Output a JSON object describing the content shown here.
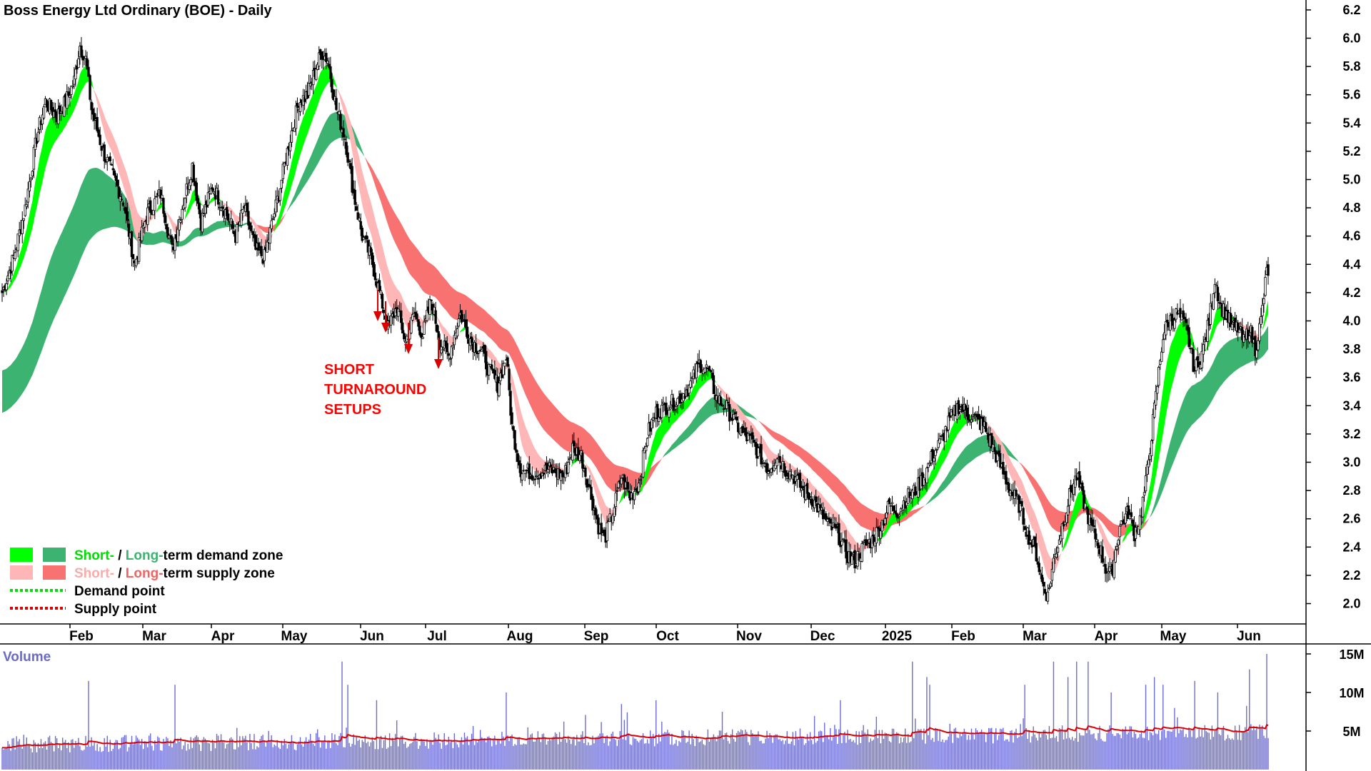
{
  "chart_data": {
    "type": "candlestick",
    "title": "Boss Energy Ltd Ordinary (BOE) - Daily",
    "price_axis": {
      "ticks": [
        "2.0",
        "2.2",
        "2.4",
        "2.6",
        "2.8",
        "3.0",
        "3.2",
        "3.4",
        "3.6",
        "3.8",
        "4.0",
        "4.2",
        "4.4",
        "4.6",
        "4.8",
        "5.0",
        "5.2",
        "5.4",
        "5.6",
        "5.8",
        "6.0",
        "6.2"
      ],
      "ylim": [
        1.87,
        6.28
      ]
    },
    "x_axis": {
      "labels": [
        "Feb",
        "Mar",
        "Apr",
        "May",
        "Jun",
        "Jul",
        "Aug",
        "Sep",
        "Oct",
        "Nov",
        "Dec",
        "2025",
        "Feb",
        "Mar",
        "Apr",
        "May",
        "Jun"
      ]
    },
    "price_path": [
      [
        0,
        4.2
      ],
      [
        8,
        4.45
      ],
      [
        16,
        4.8
      ],
      [
        24,
        5.3
      ],
      [
        30,
        5.55
      ],
      [
        38,
        5.45
      ],
      [
        44,
        5.55
      ],
      [
        50,
        5.7
      ],
      [
        54,
        5.95
      ],
      [
        58,
        5.85
      ],
      [
        62,
        5.5
      ],
      [
        70,
        5.2
      ],
      [
        78,
        5.0
      ],
      [
        84,
        4.85
      ],
      [
        92,
        4.4
      ],
      [
        100,
        4.75
      ],
      [
        110,
        4.9
      ],
      [
        118,
        4.5
      ],
      [
        126,
        4.85
      ],
      [
        132,
        5.1
      ],
      [
        138,
        4.7
      ],
      [
        146,
        4.95
      ],
      [
        154,
        4.8
      ],
      [
        162,
        4.6
      ],
      [
        168,
        4.8
      ],
      [
        176,
        4.5
      ],
      [
        182,
        4.45
      ],
      [
        192,
        4.9
      ],
      [
        200,
        5.3
      ],
      [
        206,
        5.55
      ],
      [
        212,
        5.6
      ],
      [
        218,
        5.8
      ],
      [
        222,
        5.9
      ],
      [
        226,
        5.85
      ],
      [
        232,
        5.5
      ],
      [
        238,
        5.3
      ],
      [
        244,
        4.9
      ],
      [
        250,
        4.6
      ],
      [
        256,
        4.45
      ],
      [
        262,
        4.2
      ],
      [
        268,
        3.95
      ],
      [
        274,
        4.1
      ],
      [
        280,
        3.85
      ],
      [
        286,
        4.05
      ],
      [
        292,
        3.9
      ],
      [
        298,
        4.15
      ],
      [
        304,
        3.85
      ],
      [
        310,
        3.75
      ],
      [
        318,
        4.05
      ],
      [
        326,
        3.85
      ],
      [
        332,
        3.8
      ],
      [
        338,
        3.65
      ],
      [
        344,
        3.55
      ],
      [
        350,
        3.75
      ],
      [
        354,
        3.25
      ],
      [
        360,
        2.95
      ],
      [
        370,
        2.92
      ],
      [
        380,
        2.95
      ],
      [
        390,
        2.9
      ],
      [
        396,
        3.1
      ],
      [
        402,
        3.05
      ],
      [
        408,
        2.8
      ],
      [
        414,
        2.55
      ],
      [
        418,
        2.45
      ],
      [
        424,
        2.65
      ],
      [
        430,
        2.9
      ],
      [
        436,
        2.75
      ],
      [
        442,
        2.85
      ],
      [
        448,
        3.2
      ],
      [
        454,
        3.35
      ],
      [
        462,
        3.4
      ],
      [
        470,
        3.45
      ],
      [
        478,
        3.55
      ],
      [
        484,
        3.7
      ],
      [
        490,
        3.65
      ],
      [
        496,
        3.45
      ],
      [
        502,
        3.4
      ],
      [
        508,
        3.3
      ],
      [
        514,
        3.2
      ],
      [
        520,
        3.15
      ],
      [
        526,
        3.05
      ],
      [
        532,
        2.95
      ],
      [
        538,
        3.05
      ],
      [
        544,
        2.95
      ],
      [
        550,
        2.9
      ],
      [
        556,
        2.8
      ],
      [
        562,
        2.75
      ],
      [
        568,
        2.65
      ],
      [
        574,
        2.55
      ],
      [
        580,
        2.5
      ],
      [
        586,
        2.35
      ],
      [
        592,
        2.3
      ],
      [
        598,
        2.4
      ],
      [
        604,
        2.45
      ],
      [
        610,
        2.55
      ],
      [
        616,
        2.7
      ],
      [
        622,
        2.65
      ],
      [
        628,
        2.75
      ],
      [
        634,
        2.8
      ],
      [
        640,
        2.9
      ],
      [
        646,
        3.05
      ],
      [
        652,
        3.15
      ],
      [
        658,
        3.3
      ],
      [
        664,
        3.4
      ],
      [
        670,
        3.35
      ],
      [
        676,
        3.3
      ],
      [
        682,
        3.25
      ],
      [
        688,
        3.1
      ],
      [
        694,
        2.95
      ],
      [
        700,
        2.8
      ],
      [
        706,
        2.7
      ],
      [
        712,
        2.5
      ],
      [
        718,
        2.35
      ],
      [
        722,
        2.15
      ],
      [
        726,
        2.05
      ],
      [
        730,
        2.3
      ],
      [
        736,
        2.55
      ],
      [
        742,
        2.8
      ],
      [
        746,
        2.9
      ],
      [
        750,
        2.75
      ],
      [
        756,
        2.55
      ],
      [
        762,
        2.4
      ],
      [
        766,
        2.25
      ],
      [
        770,
        2.2
      ],
      [
        776,
        2.55
      ],
      [
        782,
        2.65
      ],
      [
        786,
        2.5
      ],
      [
        790,
        2.6
      ],
      [
        794,
        2.85
      ],
      [
        798,
        3.2
      ],
      [
        802,
        3.55
      ],
      [
        806,
        3.9
      ],
      [
        810,
        4.0
      ],
      [
        816,
        4.05
      ],
      [
        822,
        3.95
      ],
      [
        828,
        3.65
      ],
      [
        834,
        3.8
      ],
      [
        838,
        4.0
      ],
      [
        842,
        4.3
      ],
      [
        846,
        4.1
      ],
      [
        850,
        4.05
      ],
      [
        854,
        3.95
      ],
      [
        858,
        3.95
      ],
      [
        862,
        3.85
      ],
      [
        866,
        3.95
      ],
      [
        870,
        3.8
      ],
      [
        874,
        4.0
      ],
      [
        878,
        4.35
      ]
    ],
    "volume_axis": {
      "ticks": [
        "5M",
        "10M",
        "15M"
      ],
      "ylim": [
        0,
        15.5
      ]
    },
    "series": [
      {
        "name": "Short-term demand zone",
        "color": "#00ff00"
      },
      {
        "name": "Long-term demand zone",
        "color": "#3cb371"
      },
      {
        "name": "Short-term supply zone",
        "color": "#ffb6b6"
      },
      {
        "name": "Long-term supply zone",
        "color": "#f87272"
      },
      {
        "name": "Demand point",
        "color": "#00dd00"
      },
      {
        "name": "Supply point",
        "color": "#dd0000"
      }
    ],
    "annotation": [
      "SHORT",
      "TURNAROUND",
      "SETUPS"
    ],
    "volume_title": "Volume",
    "volume_spikes": [
      [
        60,
        11.5
      ],
      [
        120,
        11
      ],
      [
        236,
        14
      ],
      [
        240,
        11
      ],
      [
        260,
        9
      ],
      [
        350,
        10
      ],
      [
        430,
        8.5
      ],
      [
        454,
        9
      ],
      [
        500,
        7.5
      ],
      [
        582,
        9
      ],
      [
        632,
        14
      ],
      [
        642,
        12
      ],
      [
        644,
        11
      ],
      [
        710,
        11
      ],
      [
        730,
        14
      ],
      [
        740,
        12
      ],
      [
        746,
        14
      ],
      [
        754,
        14
      ],
      [
        770,
        10
      ],
      [
        794,
        11
      ],
      [
        800,
        12
      ],
      [
        806,
        11
      ],
      [
        814,
        8
      ],
      [
        828,
        11.5
      ],
      [
        844,
        10
      ],
      [
        866,
        13
      ],
      [
        878,
        15
      ]
    ],
    "legend": {
      "row1": {
        "short": "Short-",
        "sep": " / ",
        "long": "Long-",
        "rest": "term demand zone"
      },
      "row2": {
        "short": "Short-",
        "sep": " / ",
        "long": "Long-",
        "rest": "term supply zone"
      },
      "row3": "Demand point",
      "row4": "Supply point"
    }
  }
}
